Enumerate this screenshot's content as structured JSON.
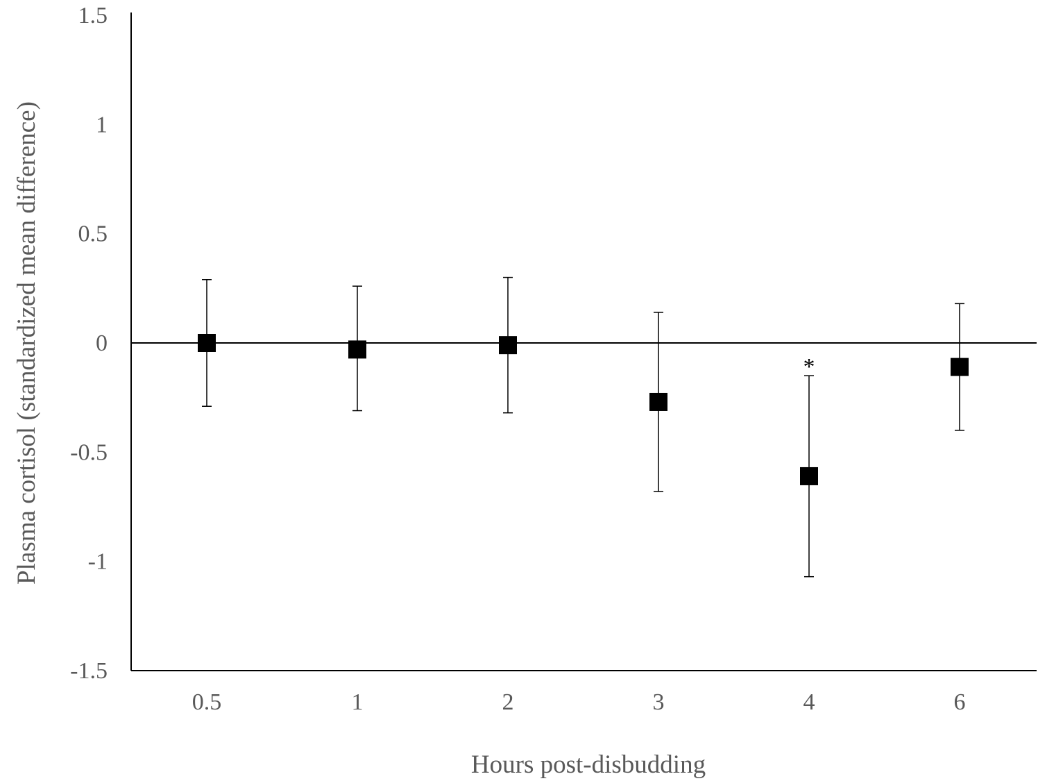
{
  "chart_data": {
    "type": "scatter",
    "title": "",
    "xlabel": "Hours post-disbudding",
    "ylabel": "Plasma cortisol (standardized mean difference)",
    "categories": [
      "0.5",
      "1",
      "2",
      "3",
      "4",
      "6"
    ],
    "series": [
      {
        "values": [
          0.0,
          -0.03,
          -0.01,
          -0.27,
          -0.61,
          -0.11
        ],
        "error_low": [
          -0.29,
          -0.31,
          -0.32,
          -0.68,
          -1.07,
          -0.4
        ],
        "error_high": [
          0.29,
          0.26,
          0.3,
          0.14,
          -0.15,
          0.18
        ],
        "marker": "square",
        "color": "#000000"
      }
    ],
    "yticks": [
      "1.5",
      "1",
      "0.5",
      "0",
      "-0.5",
      "-1",
      "-1.5"
    ],
    "ylim": [
      -1.5,
      1.5
    ],
    "reference_line": 0,
    "grid": false,
    "legend": "none",
    "annotations": [
      {
        "category": "4",
        "text": "*"
      }
    ]
  }
}
